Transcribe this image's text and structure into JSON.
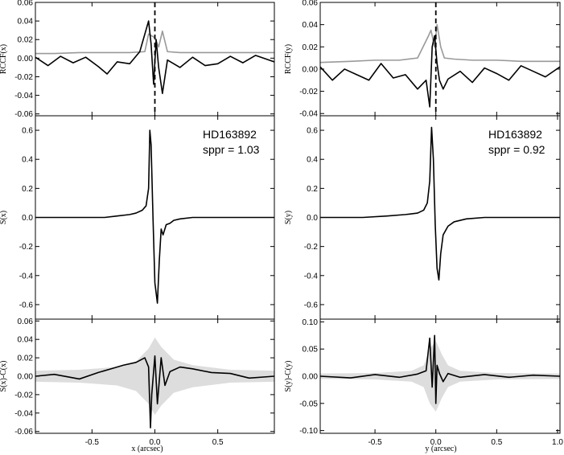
{
  "figure": {
    "x_axis_labels": [
      "x (arcsec)",
      "y (arcsec)"
    ]
  },
  "chart_data": [
    {
      "id": "rccf-x",
      "type": "line",
      "ylabel": "RCCF(x)",
      "xlim": [
        -0.95,
        0.95
      ],
      "ylim": [
        -0.062,
        0.06
      ],
      "yticks": [
        -0.06,
        -0.04,
        -0.02,
        0.0,
        0.02,
        0.04,
        0.06
      ],
      "xticks": [
        -0.5,
        0.0,
        0.5
      ],
      "dashed_vline_at": 0.0,
      "series": [
        {
          "color": "#999999",
          "x": [
            -0.95,
            -0.8,
            -0.6,
            -0.4,
            -0.2,
            -0.08,
            -0.05,
            0.0,
            0.03,
            0.06,
            0.1,
            0.2,
            0.4,
            0.6,
            0.8,
            0.95
          ],
          "y": [
            0.005,
            0.005,
            0.006,
            0.006,
            0.006,
            0.007,
            0.026,
            0.022,
            0.012,
            0.029,
            0.007,
            0.006,
            0.006,
            0.006,
            0.006,
            0.006
          ]
        },
        {
          "color": "#000000",
          "x": [
            -0.95,
            -0.85,
            -0.75,
            -0.65,
            -0.55,
            -0.45,
            -0.38,
            -0.3,
            -0.2,
            -0.12,
            -0.05,
            -0.03,
            -0.01,
            0.01,
            0.03,
            0.06,
            0.1,
            0.2,
            0.3,
            0.4,
            0.5,
            0.6,
            0.7,
            0.8,
            0.95
          ],
          "y": [
            0.001,
            -0.008,
            0.002,
            -0.005,
            0.001,
            -0.009,
            -0.017,
            -0.004,
            -0.006,
            0.007,
            0.04,
            0.015,
            -0.028,
            0.02,
            -0.01,
            -0.038,
            -0.002,
            -0.01,
            0.001,
            -0.008,
            -0.006,
            0.002,
            -0.005,
            0.003,
            -0.004
          ]
        }
      ]
    },
    {
      "id": "s-x",
      "type": "line",
      "ylabel": "S(x)",
      "xlim": [
        -0.95,
        0.95
      ],
      "ylim": [
        -0.7,
        0.7
      ],
      "yticks": [
        -0.6,
        -0.4,
        -0.2,
        0.0,
        0.2,
        0.4,
        0.6
      ],
      "xticks": [
        -0.5,
        0.0,
        0.5
      ],
      "annotation": {
        "name": "HD163892",
        "sppr": "sppr = 1.03"
      },
      "series": [
        {
          "color": "#000000",
          "x": [
            -0.95,
            -0.6,
            -0.4,
            -0.3,
            -0.2,
            -0.15,
            -0.1,
            -0.07,
            -0.05,
            -0.04,
            -0.03,
            -0.015,
            0.0,
            0.02,
            0.035,
            0.05,
            0.065,
            0.09,
            0.12,
            0.15,
            0.2,
            0.3,
            0.5,
            0.95
          ],
          "y": [
            0.0,
            0.0,
            0.0,
            0.01,
            0.02,
            0.03,
            0.05,
            0.08,
            0.2,
            0.6,
            0.5,
            0.0,
            -0.45,
            -0.59,
            -0.3,
            -0.08,
            -0.12,
            -0.05,
            -0.04,
            -0.02,
            -0.01,
            0.0,
            0.0,
            0.0
          ]
        }
      ]
    },
    {
      "id": "resid-x",
      "type": "line",
      "ylabel": "S(x)-C(x)",
      "xlim": [
        -0.95,
        0.95
      ],
      "ylim": [
        -0.062,
        0.062
      ],
      "yticks": [
        -0.06,
        -0.04,
        -0.02,
        0.0,
        0.02,
        0.04,
        0.06
      ],
      "xticks": [
        -0.5,
        0.0,
        0.5
      ],
      "xticklabels": [
        "-0.5",
        "0.0",
        "0.5"
      ],
      "band": {
        "color": "#dddddd",
        "x": [
          -0.95,
          -0.6,
          -0.3,
          -0.15,
          -0.05,
          0.0,
          0.05,
          0.15,
          0.3,
          0.6,
          0.95
        ],
        "half_width": [
          0.006,
          0.007,
          0.01,
          0.016,
          0.03,
          0.042,
          0.032,
          0.018,
          0.012,
          0.007,
          0.006
        ]
      },
      "series": [
        {
          "color": "#000000",
          "x": [
            -0.95,
            -0.8,
            -0.6,
            -0.45,
            -0.35,
            -0.25,
            -0.15,
            -0.08,
            -0.05,
            -0.035,
            -0.025,
            0.0,
            0.02,
            0.05,
            0.08,
            0.12,
            0.2,
            0.3,
            0.45,
            0.6,
            0.75,
            0.95
          ],
          "y": [
            0.0,
            0.002,
            -0.003,
            0.004,
            0.008,
            0.012,
            0.015,
            0.02,
            0.01,
            -0.056,
            -0.02,
            0.022,
            -0.03,
            0.02,
            -0.01,
            0.005,
            0.01,
            0.008,
            0.004,
            0.003,
            -0.002,
            0.0
          ]
        }
      ]
    },
    {
      "id": "rccf-y",
      "type": "line",
      "ylabel": "RCCF(y)",
      "xlim": [
        -0.95,
        1.02
      ],
      "ylim": [
        -0.042,
        0.06
      ],
      "yticks": [
        -0.04,
        -0.02,
        0.0,
        0.02,
        0.04,
        0.06
      ],
      "xticks": [
        -0.5,
        0.0,
        0.5,
        1.0
      ],
      "dashed_vline_at": 0.0,
      "series": [
        {
          "color": "#999999",
          "x": [
            -0.95,
            -0.7,
            -0.5,
            -0.3,
            -0.15,
            -0.06,
            -0.04,
            -0.01,
            0.01,
            0.04,
            0.07,
            0.15,
            0.3,
            0.5,
            0.7,
            1.02
          ],
          "y": [
            0.006,
            0.007,
            0.008,
            0.008,
            0.01,
            0.03,
            0.035,
            0.02,
            0.04,
            0.02,
            0.01,
            0.009,
            0.008,
            0.008,
            0.007,
            0.007
          ]
        },
        {
          "color": "#000000",
          "x": [
            -0.95,
            -0.85,
            -0.75,
            -0.65,
            -0.55,
            -0.45,
            -0.35,
            -0.25,
            -0.15,
            -0.08,
            -0.05,
            -0.03,
            -0.01,
            0.01,
            0.03,
            0.06,
            0.1,
            0.2,
            0.3,
            0.4,
            0.5,
            0.6,
            0.7,
            0.8,
            0.9,
            1.02
          ],
          "y": [
            0.002,
            -0.01,
            0.0,
            -0.005,
            -0.01,
            0.005,
            -0.008,
            -0.005,
            -0.018,
            -0.01,
            -0.034,
            0.02,
            0.03,
            0.005,
            -0.01,
            -0.018,
            -0.009,
            -0.002,
            -0.012,
            0.001,
            -0.004,
            -0.01,
            0.003,
            -0.002,
            -0.007,
            0.002
          ]
        }
      ]
    },
    {
      "id": "s-y",
      "type": "line",
      "ylabel": "S(y)",
      "xlim": [
        -0.95,
        1.02
      ],
      "ylim": [
        -0.7,
        0.7
      ],
      "yticks": [
        -0.6,
        -0.4,
        -0.2,
        0.0,
        0.2,
        0.4,
        0.6
      ],
      "xticks": [
        -0.5,
        0.0,
        0.5,
        1.0
      ],
      "annotation": {
        "name": "HD163892",
        "sppr": "sppr = 0.92"
      },
      "series": [
        {
          "color": "#000000",
          "x": [
            -0.95,
            -0.6,
            -0.4,
            -0.25,
            -0.15,
            -0.1,
            -0.07,
            -0.05,
            -0.035,
            -0.02,
            -0.005,
            0.01,
            0.025,
            0.04,
            0.06,
            0.1,
            0.15,
            0.25,
            0.4,
            0.6,
            1.02
          ],
          "y": [
            0.0,
            0.0,
            0.01,
            0.02,
            0.03,
            0.05,
            0.1,
            0.25,
            0.62,
            0.4,
            -0.05,
            -0.35,
            -0.43,
            -0.25,
            -0.12,
            -0.06,
            -0.03,
            -0.01,
            0.0,
            0.0,
            0.0
          ]
        }
      ]
    },
    {
      "id": "resid-y",
      "type": "line",
      "ylabel": "S(y)-C(y)",
      "xlim": [
        -0.95,
        1.02
      ],
      "ylim": [
        -0.105,
        0.105
      ],
      "yticks": [
        -0.1,
        -0.05,
        0.0,
        0.05,
        0.1
      ],
      "xticks": [
        -0.5,
        0.0,
        0.5,
        1.0
      ],
      "xticklabels": [
        "-0.5",
        "0.0",
        "0.5",
        "1.0"
      ],
      "band": {
        "color": "#dddddd",
        "x": [
          -0.95,
          -0.5,
          -0.2,
          -0.1,
          -0.05,
          0.0,
          0.05,
          0.1,
          0.2,
          0.5,
          1.02
        ],
        "half_width": [
          0.005,
          0.006,
          0.01,
          0.02,
          0.05,
          0.065,
          0.04,
          0.02,
          0.01,
          0.006,
          0.005
        ]
      },
      "series": [
        {
          "color": "#000000",
          "x": [
            -0.95,
            -0.7,
            -0.5,
            -0.3,
            -0.15,
            -0.08,
            -0.05,
            -0.03,
            -0.01,
            0.0,
            0.01,
            0.03,
            0.06,
            0.1,
            0.2,
            0.4,
            0.6,
            0.8,
            1.02
          ],
          "y": [
            0.0,
            -0.003,
            0.003,
            -0.002,
            0.004,
            0.01,
            0.07,
            -0.02,
            0.075,
            -0.05,
            0.02,
            0.005,
            -0.01,
            0.005,
            -0.002,
            0.003,
            -0.002,
            0.002,
            0.0
          ]
        }
      ]
    }
  ]
}
